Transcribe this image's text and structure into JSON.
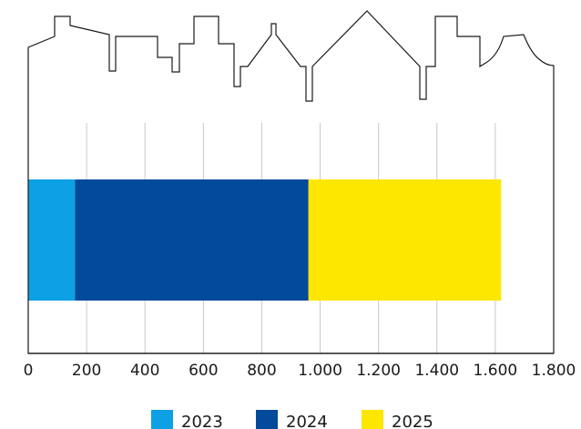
{
  "chart_data": {
    "type": "bar",
    "orientation": "horizontal",
    "stacked": true,
    "title": "",
    "xlabel": "",
    "ylabel": "",
    "xlim": [
      0,
      1800
    ],
    "x_ticks": [
      0,
      200,
      400,
      600,
      800,
      1000,
      1200,
      1400,
      1600,
      1800
    ],
    "x_tick_labels": [
      "0",
      "200",
      "400",
      "600",
      "800",
      "1.000",
      "1.200",
      "1.400",
      "1.600",
      "1.800"
    ],
    "grid": "vertical",
    "legend_position": "bottom-center",
    "categories": [
      ""
    ],
    "series": [
      {
        "name": "2023",
        "values": [
          160
        ],
        "color": "#0ea0e4"
      },
      {
        "name": "2024",
        "values": [
          800
        ],
        "color": "#014b9a"
      },
      {
        "name": "2025",
        "values": [
          660
        ],
        "color": "#fde600"
      }
    ],
    "decoration": "skyline-outline"
  }
}
